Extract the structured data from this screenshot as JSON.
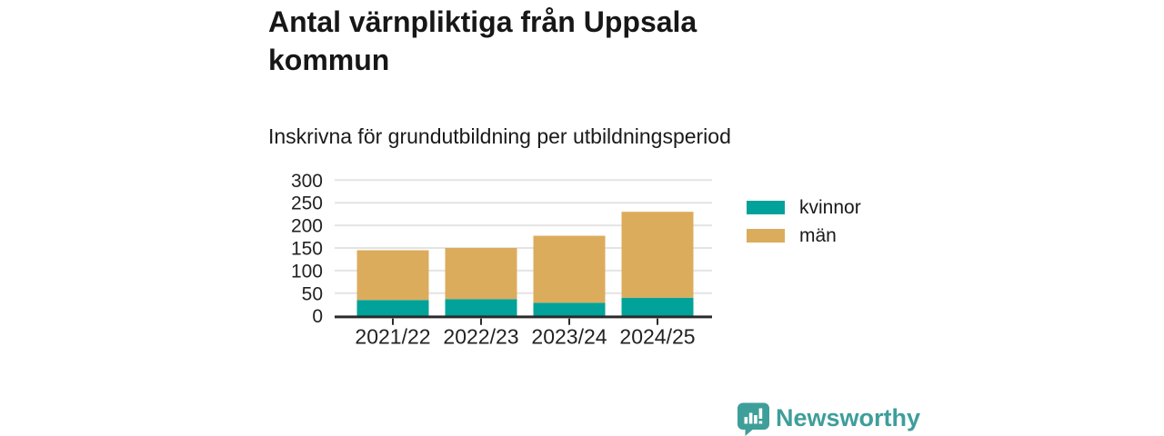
{
  "header": {
    "title": "Antal värnpliktiga från Uppsala kommun",
    "subtitle": "Inskrivna för grundutbildning per utbildningsperiod"
  },
  "chart_data": {
    "type": "bar",
    "stacked": true,
    "title": "Antal värnpliktiga från Uppsala kommun",
    "subtitle": "Inskrivna för grundutbildning per utbildningsperiod",
    "categories": [
      "2021/22",
      "2022/23",
      "2023/24",
      "2024/25"
    ],
    "series": [
      {
        "name": "kvinnor",
        "color": "#00a29a",
        "values": [
          35,
          37,
          29,
          40
        ]
      },
      {
        "name": "män",
        "color": "#dbac5c",
        "values": [
          110,
          113,
          148,
          190
        ]
      }
    ],
    "stacked_totals": [
      145,
      150,
      177,
      230
    ],
    "xlabel": "",
    "ylabel": "",
    "ylim": [
      0,
      300
    ],
    "yticks": [
      0,
      50,
      100,
      150,
      200,
      250,
      300
    ],
    "grid": "horizontal",
    "legend_position": "right"
  },
  "footer": {
    "brand": "Newsworthy"
  },
  "colors": {
    "kvinnor": "#00a29a",
    "man": "#dbac5c",
    "brand_teal": "#3e9e9a",
    "grid_line": "#e4e4e4",
    "axis_line": "#2b2b2b",
    "tick_text": "#222222"
  }
}
